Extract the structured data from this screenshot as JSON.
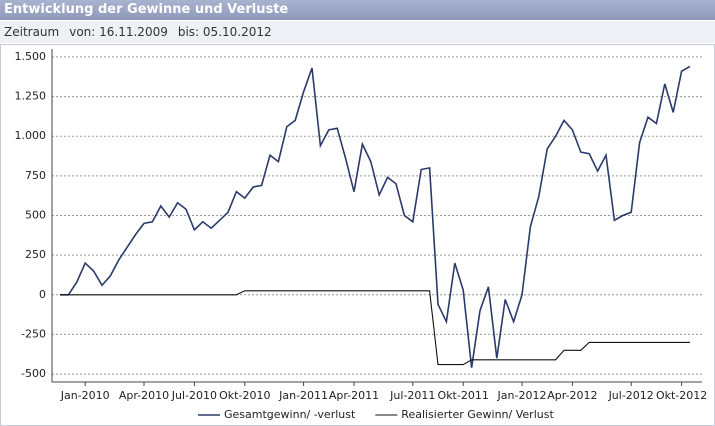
{
  "header": {
    "title": "Entwicklung der Gewinne und Verluste"
  },
  "period": {
    "label": "Zeitraum",
    "from": "von: 16.11.2009",
    "to": "bis: 05.10.2012"
  },
  "chart_data": {
    "type": "line",
    "categories": [
      null,
      null,
      null,
      "Jan-2010",
      null,
      null,
      null,
      null,
      null,
      null,
      "Apr-2010",
      null,
      null,
      null,
      null,
      null,
      "Jul-2010",
      null,
      null,
      null,
      null,
      null,
      "Okt-2010",
      null,
      null,
      null,
      null,
      null,
      null,
      "Jan-2011",
      null,
      null,
      null,
      null,
      null,
      "Apr-2011",
      null,
      null,
      null,
      null,
      null,
      null,
      "Jul-2011",
      null,
      null,
      null,
      null,
      null,
      "Okt-2011",
      null,
      null,
      null,
      null,
      null,
      null,
      "Jan-2012",
      null,
      null,
      null,
      null,
      null,
      "Apr-2012",
      null,
      null,
      null,
      null,
      null,
      null,
      "Jul-2012",
      null,
      null,
      null,
      null,
      null,
      "Okt-2012",
      null
    ],
    "series": [
      {
        "name": "Gesamtgewinn/ -verlust",
        "color": "#2b3a6b",
        "values": [
          0,
          0,
          80,
          200,
          150,
          60,
          120,
          220,
          300,
          380,
          450,
          460,
          560,
          490,
          580,
          540,
          410,
          460,
          420,
          470,
          520,
          650,
          610,
          680,
          690,
          880,
          840,
          1060,
          1100,
          1280,
          1430,
          940,
          1040,
          1050,
          860,
          650,
          950,
          840,
          630,
          740,
          700,
          500,
          460,
          790,
          800,
          -60,
          -170,
          200,
          30,
          -460,
          -100,
          50,
          -400,
          -30,
          -170,
          0,
          430,
          620,
          920,
          1000,
          1100,
          1040,
          900,
          890,
          780,
          880,
          470,
          500,
          520,
          960,
          1120,
          1080,
          1330,
          1150,
          1410,
          1440
        ]
      },
      {
        "name": "Realisierter Gewinn/ Verlust",
        "color": "#111111",
        "values": [
          0,
          0,
          0,
          0,
          0,
          0,
          0,
          0,
          0,
          0,
          0,
          0,
          0,
          0,
          0,
          0,
          0,
          0,
          0,
          0,
          0,
          0,
          25,
          25,
          25,
          25,
          25,
          25,
          25,
          25,
          25,
          25,
          25,
          25,
          25,
          25,
          25,
          25,
          25,
          25,
          25,
          25,
          25,
          25,
          25,
          -440,
          -440,
          -440,
          -440,
          -410,
          -410,
          -410,
          -410,
          -410,
          -410,
          -410,
          -410,
          -410,
          -410,
          -410,
          -350,
          -350,
          -350,
          -300,
          -300,
          -300,
          -300,
          -300,
          -300,
          -300,
          -300,
          -300,
          -300,
          -300,
          -300,
          -300
        ]
      }
    ],
    "ylim": [
      -550,
      1550
    ],
    "yticks": [
      {
        "value": 1500,
        "label": "1.500"
      },
      {
        "value": 1250,
        "label": "1.250"
      },
      {
        "value": 1000,
        "label": "1.000"
      },
      750,
      500,
      250,
      0,
      -250,
      -500
    ],
    "grid": true,
    "legend": "bottom"
  }
}
